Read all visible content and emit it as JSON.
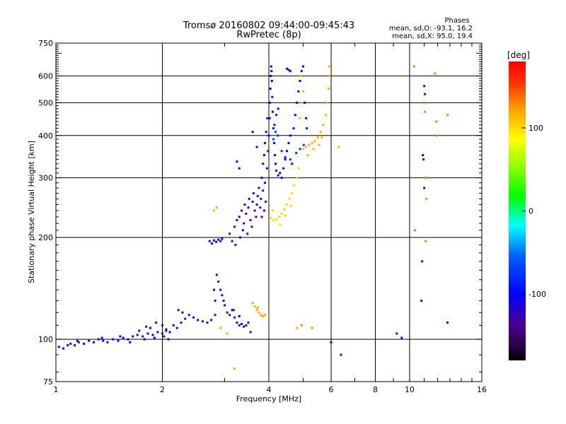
{
  "chart_data": {
    "type": "scatter",
    "title": "Tromsø 20160802 09:44:00-09:45:43",
    "subtitle": "RwPretec (8p)",
    "phases_header": "Phases",
    "phases_line_o": "mean, sd,O: -93.1, 16.2",
    "phases_line_x": "mean, sd,X:  95.0, 19.4",
    "xlabel": "Frequency [MHz]",
    "ylabel": "Stationary phase Virtual Height [km]",
    "xscale": "log",
    "yscale": "log",
    "xlim": [
      1,
      16
    ],
    "ylim": [
      75,
      750
    ],
    "xticks": [
      {
        "value": 1,
        "label": "1"
      },
      {
        "value": 2,
        "label": "2"
      },
      {
        "value": 4,
        "label": "4"
      },
      {
        "value": 6,
        "label": "6"
      },
      {
        "value": 8,
        "label": "8"
      },
      {
        "value": 10,
        "label": "10"
      },
      {
        "value": 16,
        "label": "16"
      }
    ],
    "yticks": [
      {
        "value": 75,
        "label": "75"
      },
      {
        "value": 100,
        "label": "100"
      },
      {
        "value": 200,
        "label": "200"
      },
      {
        "value": 300,
        "label": "300"
      },
      {
        "value": 400,
        "label": "400"
      },
      {
        "value": 500,
        "label": "500"
      },
      {
        "value": 600,
        "label": "600"
      },
      {
        "value": 750,
        "label": "750"
      }
    ],
    "vgrid": [
      2,
      4,
      6,
      8,
      10
    ],
    "hgrid": [
      100,
      200,
      300,
      400,
      500,
      600
    ],
    "colorbar": {
      "label": "[deg]",
      "range": [
        -180,
        180
      ],
      "ticks": [
        {
          "value": 100,
          "label": "100"
        },
        {
          "value": 0,
          "label": "0"
        },
        {
          "value": -100,
          "label": "-100"
        }
      ]
    },
    "series": [
      {
        "phase": -105,
        "points": [
          [
            1.02,
            95
          ],
          [
            1.05,
            94
          ],
          [
            1.08,
            96
          ],
          [
            1.1,
            97
          ],
          [
            1.13,
            96
          ],
          [
            1.16,
            98
          ],
          [
            1.2,
            97
          ],
          [
            1.24,
            99
          ],
          [
            1.28,
            98
          ],
          [
            1.32,
            100
          ],
          [
            1.36,
            99
          ],
          [
            1.4,
            98
          ],
          [
            1.45,
            100
          ],
          [
            1.5,
            99
          ],
          [
            1.55,
            101
          ],
          [
            1.6,
            100
          ],
          [
            1.65,
            102
          ],
          [
            1.7,
            103
          ],
          [
            1.76,
            102
          ],
          [
            1.82,
            104
          ],
          [
            1.88,
            103
          ],
          [
            1.94,
            105
          ],
          [
            2.0,
            104
          ],
          [
            2.05,
            106
          ],
          [
            2.1,
            105
          ],
          [
            1.15,
            99
          ],
          [
            1.35,
            101
          ],
          [
            1.52,
            102
          ],
          [
            1.62,
            98
          ],
          [
            1.78,
            100
          ],
          [
            1.9,
            101
          ],
          [
            2.02,
            102
          ],
          [
            2.08,
            100
          ]
        ]
      },
      {
        "phase": -115,
        "points": [
          [
            2.15,
            110
          ],
          [
            2.2,
            108
          ],
          [
            2.26,
            112
          ],
          [
            2.32,
            115
          ],
          [
            2.38,
            118
          ],
          [
            2.45,
            116
          ],
          [
            2.52,
            114
          ],
          [
            2.6,
            113
          ],
          [
            2.68,
            112
          ],
          [
            2.75,
            114
          ],
          [
            2.82,
            118
          ],
          [
            1.85,
            108
          ],
          [
            1.92,
            112
          ],
          [
            2.0,
            110
          ],
          [
            2.05,
            107
          ],
          [
            1.72,
            106
          ],
          [
            1.8,
            109
          ],
          [
            2.22,
            122
          ],
          [
            2.28,
            120
          ]
        ]
      },
      {
        "phase": -110,
        "points": [
          [
            2.72,
            195
          ],
          [
            2.76,
            192
          ],
          [
            2.8,
            196
          ],
          [
            2.84,
            194
          ],
          [
            2.88,
            197
          ],
          [
            2.92,
            195
          ],
          [
            2.95,
            198
          ]
        ]
      },
      {
        "phase": -125,
        "points": [
          [
            3.1,
            205
          ],
          [
            3.15,
            195
          ],
          [
            3.2,
            215
          ],
          [
            3.22,
            190
          ],
          [
            3.25,
            225
          ],
          [
            3.3,
            230
          ],
          [
            3.32,
            200
          ],
          [
            3.35,
            240
          ],
          [
            3.38,
            210
          ],
          [
            3.4,
            220
          ],
          [
            3.42,
            250
          ],
          [
            3.45,
            235
          ],
          [
            3.48,
            205
          ],
          [
            3.5,
            245
          ],
          [
            3.52,
            260
          ],
          [
            3.55,
            225
          ],
          [
            3.58,
            215
          ],
          [
            3.6,
            255
          ],
          [
            3.62,
            270
          ],
          [
            3.65,
            240
          ],
          [
            3.68,
            230
          ],
          [
            3.7,
            250
          ],
          [
            3.72,
            265
          ],
          [
            3.75,
            280
          ],
          [
            3.78,
            245
          ],
          [
            3.8,
            260
          ],
          [
            3.82,
            230
          ],
          [
            3.85,
            275
          ],
          [
            3.88,
            240
          ],
          [
            3.9,
            290
          ],
          [
            3.92,
            255
          ]
        ]
      },
      {
        "phase": -100,
        "points": [
          [
            3.95,
            320
          ],
          [
            3.98,
            360
          ],
          [
            4.0,
            400
          ],
          [
            4.02,
            450
          ],
          [
            4.03,
            500
          ],
          [
            4.04,
            550
          ],
          [
            4.05,
            600
          ],
          [
            4.06,
            640
          ],
          [
            4.07,
            620
          ],
          [
            4.08,
            580
          ],
          [
            4.09,
            520
          ],
          [
            4.1,
            470
          ],
          [
            4.12,
            420
          ],
          [
            4.14,
            380
          ],
          [
            4.16,
            350
          ],
          [
            4.18,
            330
          ],
          [
            4.2,
            315
          ],
          [
            4.25,
            305
          ],
          [
            4.3,
            310
          ],
          [
            4.35,
            300
          ],
          [
            4.4,
            320
          ],
          [
            4.45,
            340
          ],
          [
            4.5,
            360
          ],
          [
            4.55,
            380
          ],
          [
            4.6,
            400
          ],
          [
            4.65,
            330
          ],
          [
            4.7,
            420
          ],
          [
            4.75,
            460
          ],
          [
            4.8,
            500
          ],
          [
            4.85,
            540
          ],
          [
            4.9,
            580
          ],
          [
            4.95,
            620
          ],
          [
            5.0,
            640
          ],
          [
            4.5,
            630
          ],
          [
            4.55,
            625
          ],
          [
            4.6,
            620
          ],
          [
            5.05,
            500
          ],
          [
            5.1,
            450
          ],
          [
            5.12,
            420
          ]
        ]
      },
      {
        "phase": -95,
        "points": [
          [
            3.82,
            300
          ],
          [
            3.85,
            330
          ],
          [
            3.88,
            350
          ],
          [
            3.9,
            380
          ],
          [
            3.93,
            410
          ],
          [
            3.96,
            450
          ],
          [
            3.6,
            410
          ],
          [
            3.3,
            320
          ],
          [
            3.25,
            335
          ],
          [
            4.15,
            430
          ],
          [
            4.2,
            460
          ],
          [
            4.25,
            480
          ],
          [
            3.7,
            370
          ]
        ]
      },
      {
        "phase": -75,
        "points": [
          [
            4.12,
            390
          ],
          [
            4.18,
            410
          ],
          [
            4.24,
            400
          ],
          [
            4.35,
            360
          ],
          [
            4.45,
            345
          ],
          [
            4.6,
            340
          ],
          [
            4.78,
            355
          ],
          [
            4.9,
            365
          ],
          [
            5.02,
            375
          ]
        ]
      },
      {
        "phase": 100,
        "points": [
          [
            4.05,
            228
          ],
          [
            4.12,
            225
          ],
          [
            4.2,
            226
          ],
          [
            4.28,
            230
          ],
          [
            4.35,
            235
          ],
          [
            4.42,
            242
          ],
          [
            4.5,
            250
          ],
          [
            4.58,
            260
          ],
          [
            4.65,
            270
          ],
          [
            4.72,
            285
          ],
          [
            4.8,
            300
          ],
          [
            4.85,
            320
          ],
          [
            4.1,
            240
          ],
          [
            4.3,
            218
          ],
          [
            4.45,
            232
          ],
          [
            4.62,
            248
          ]
        ]
      },
      {
        "phase": 115,
        "points": [
          [
            5.0,
            365
          ],
          [
            5.1,
            370
          ],
          [
            5.2,
            375
          ],
          [
            5.3,
            380
          ],
          [
            5.4,
            385
          ],
          [
            5.5,
            395
          ],
          [
            5.6,
            410
          ],
          [
            5.7,
            430
          ],
          [
            5.8,
            460
          ],
          [
            5.85,
            500
          ],
          [
            5.9,
            550
          ],
          [
            5.95,
            600
          ],
          [
            5.92,
            640
          ],
          [
            5.15,
            350
          ],
          [
            5.35,
            365
          ],
          [
            5.55,
            375
          ],
          [
            5.65,
            395
          ],
          [
            4.9,
            450
          ],
          [
            4.95,
            500
          ],
          [
            5.0,
            540
          ],
          [
            4.92,
            600
          ]
        ]
      },
      {
        "phase": -128,
        "points": [
          [
            2.88,
            148
          ],
          [
            2.92,
            140
          ],
          [
            2.95,
            135
          ],
          [
            2.98,
            130
          ],
          [
            3.0,
            126
          ],
          [
            3.05,
            120
          ],
          [
            3.1,
            118
          ],
          [
            3.15,
            122
          ],
          [
            3.2,
            116
          ],
          [
            3.25,
            112
          ],
          [
            3.3,
            110
          ],
          [
            3.35,
            111
          ],
          [
            3.4,
            109
          ],
          [
            3.45,
            110
          ],
          [
            3.5,
            112
          ]
        ]
      },
      {
        "phase": -110,
        "points": [
          [
            2.8,
            140
          ],
          [
            2.85,
            155
          ],
          [
            2.82,
            130
          ],
          [
            3.18,
            122
          ],
          [
            3.3,
            117
          ],
          [
            3.55,
            105
          ]
        ]
      },
      {
        "phase": 120,
        "points": [
          [
            3.6,
            128
          ],
          [
            3.65,
            125
          ],
          [
            3.7,
            122
          ],
          [
            3.75,
            120
          ],
          [
            3.8,
            118
          ],
          [
            3.85,
            117
          ],
          [
            3.9,
            118
          ],
          [
            3.72,
            124
          ]
        ]
      },
      {
        "phase": 115,
        "points": [
          [
            2.8,
            240
          ],
          [
            2.85,
            245
          ],
          [
            2.92,
            108
          ],
          [
            3.05,
            104
          ],
          [
            3.2,
            82
          ],
          [
            4.8,
            108
          ],
          [
            6.3,
            370
          ]
        ]
      },
      {
        "phase": -95,
        "points": [
          [
            6.0,
            98
          ],
          [
            6.4,
            90
          ],
          [
            9.2,
            104
          ],
          [
            9.5,
            101
          ],
          [
            10.8,
            130
          ],
          [
            10.85,
            170
          ],
          [
            10.9,
            350
          ],
          [
            10.95,
            340
          ],
          [
            11.0,
            280
          ],
          [
            12.8,
            112
          ],
          [
            11.0,
            560
          ],
          [
            11.05,
            530
          ]
        ]
      },
      {
        "phase": 130,
        "points": [
          [
            10.3,
            640
          ],
          [
            10.35,
            210
          ],
          [
            11.0,
            500
          ],
          [
            11.05,
            470
          ],
          [
            11.1,
            300
          ],
          [
            11.15,
            260
          ],
          [
            11.1,
            195
          ],
          [
            11.8,
            610
          ],
          [
            11.9,
            440
          ],
          [
            11.95,
            400
          ],
          [
            12.8,
            460
          ],
          [
            4.95,
            110
          ],
          [
            5.3,
            108
          ]
        ]
      }
    ]
  }
}
